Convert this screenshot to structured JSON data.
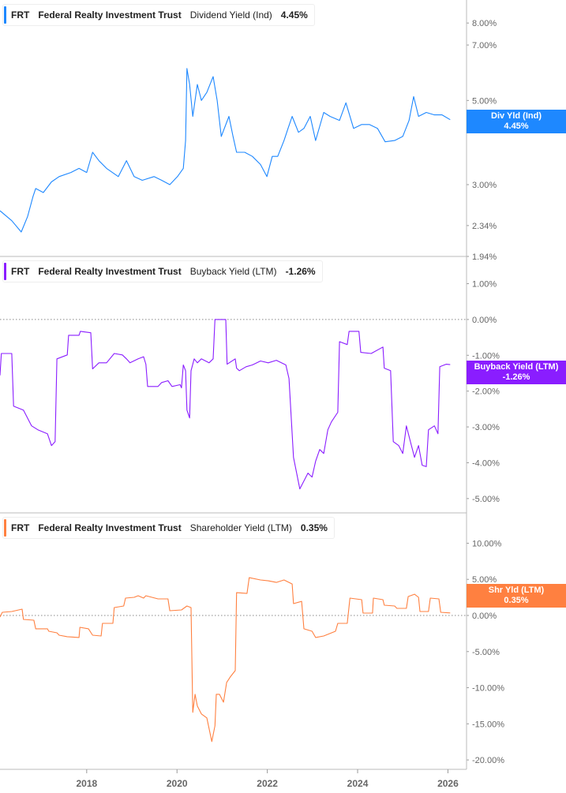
{
  "colors": {
    "dividend": "#1e88ff",
    "buyback": "#8a1dff",
    "shareholder": "#ff8040",
    "axis": "#bbbbbb",
    "tick_text": "#666666"
  },
  "x_axis": {
    "ticks": [
      2018,
      2020,
      2022,
      2024,
      2026
    ],
    "labels": [
      "2018",
      "2020",
      "2022",
      "2024",
      "2026"
    ],
    "range": [
      2016.08,
      2026.4
    ]
  },
  "chart_data": [
    {
      "type": "line",
      "ticker": "FRT",
      "company": "Federal Realty Investment Trust",
      "metric": "Dividend Yield (Ind)",
      "value_label": "4.45%",
      "badge": {
        "line1": "Div Yld (Ind)",
        "line2": "4.45%"
      },
      "last_value": 4.45,
      "y_scale": "log",
      "ylim": [
        1.94,
        9.2
      ],
      "y_ticks": [
        8,
        7,
        5,
        3,
        2.34,
        1.94
      ],
      "y_tick_labels": [
        "8.00%",
        "7.00%",
        "5.00%",
        "3.00%",
        "2.34%",
        "1.94%"
      ],
      "points": [
        [
          2016.08,
          2.56
        ],
        [
          2016.34,
          2.41
        ],
        [
          2016.55,
          2.25
        ],
        [
          2016.69,
          2.47
        ],
        [
          2016.81,
          2.79
        ],
        [
          2016.87,
          2.93
        ],
        [
          2017.04,
          2.86
        ],
        [
          2017.22,
          3.05
        ],
        [
          2017.39,
          3.15
        ],
        [
          2017.65,
          3.23
        ],
        [
          2017.83,
          3.31
        ],
        [
          2018.0,
          3.23
        ],
        [
          2018.13,
          3.65
        ],
        [
          2018.27,
          3.47
        ],
        [
          2018.44,
          3.31
        ],
        [
          2018.7,
          3.15
        ],
        [
          2018.88,
          3.47
        ],
        [
          2019.05,
          3.15
        ],
        [
          2019.23,
          3.08
        ],
        [
          2019.49,
          3.15
        ],
        [
          2019.66,
          3.08
        ],
        [
          2019.84,
          3.0
        ],
        [
          2020.01,
          3.15
        ],
        [
          2020.14,
          3.31
        ],
        [
          2020.19,
          3.92
        ],
        [
          2020.22,
          6.07
        ],
        [
          2020.28,
          5.51
        ],
        [
          2020.35,
          4.54
        ],
        [
          2020.45,
          5.51
        ],
        [
          2020.54,
          5.0
        ],
        [
          2020.66,
          5.25
        ],
        [
          2020.8,
          5.78
        ],
        [
          2020.89,
          5.0
        ],
        [
          2020.98,
          4.02
        ],
        [
          2021.15,
          4.54
        ],
        [
          2021.24,
          4.02
        ],
        [
          2021.32,
          3.65
        ],
        [
          2021.5,
          3.65
        ],
        [
          2021.67,
          3.56
        ],
        [
          2021.85,
          3.39
        ],
        [
          2021.99,
          3.15
        ],
        [
          2022.11,
          3.56
        ],
        [
          2022.23,
          3.56
        ],
        [
          2022.37,
          3.92
        ],
        [
          2022.46,
          4.22
        ],
        [
          2022.55,
          4.54
        ],
        [
          2022.69,
          4.12
        ],
        [
          2022.81,
          4.22
        ],
        [
          2022.95,
          4.54
        ],
        [
          2023.07,
          3.92
        ],
        [
          2023.25,
          4.65
        ],
        [
          2023.39,
          4.54
        ],
        [
          2023.6,
          4.43
        ],
        [
          2023.74,
          4.93
        ],
        [
          2023.91,
          4.22
        ],
        [
          2024.09,
          4.32
        ],
        [
          2024.26,
          4.32
        ],
        [
          2024.44,
          4.22
        ],
        [
          2024.61,
          3.89
        ],
        [
          2024.82,
          3.92
        ],
        [
          2025.0,
          4.02
        ],
        [
          2025.14,
          4.43
        ],
        [
          2025.24,
          5.12
        ],
        [
          2025.35,
          4.54
        ],
        [
          2025.52,
          4.65
        ],
        [
          2025.7,
          4.58
        ],
        [
          2025.87,
          4.58
        ],
        [
          2026.05,
          4.45
        ]
      ]
    },
    {
      "type": "line",
      "ticker": "FRT",
      "company": "Federal Realty Investment Trust",
      "metric": "Buyback Yield (LTM)",
      "value_label": "-1.26%",
      "badge": {
        "line1": "Buyback Yield (LTM)",
        "line2": "-1.26%"
      },
      "last_value": -1.26,
      "y_scale": "linear",
      "ylim": [
        -5.4,
        1.76
      ],
      "zero_line": true,
      "y_ticks": [
        1,
        0,
        -1,
        -2,
        -3,
        -4,
        -5
      ],
      "y_tick_labels": [
        "1.00%",
        "0.00%",
        "-1.00%",
        "-2.00%",
        "-3.00%",
        "-4.00%",
        "-5.00%"
      ],
      "points": [
        [
          2016.08,
          -1.56
        ],
        [
          2016.11,
          -0.95
        ],
        [
          2016.34,
          -0.95
        ],
        [
          2016.38,
          -2.42
        ],
        [
          2016.6,
          -2.53
        ],
        [
          2016.78,
          -2.97
        ],
        [
          2016.92,
          -3.08
        ],
        [
          2017.13,
          -3.19
        ],
        [
          2017.22,
          -3.52
        ],
        [
          2017.3,
          -3.41
        ],
        [
          2017.34,
          -1.1
        ],
        [
          2017.57,
          -0.99
        ],
        [
          2017.6,
          -0.44
        ],
        [
          2017.83,
          -0.44
        ],
        [
          2017.86,
          -0.33
        ],
        [
          2018.09,
          -0.37
        ],
        [
          2018.13,
          -1.38
        ],
        [
          2018.27,
          -1.21
        ],
        [
          2018.44,
          -1.21
        ],
        [
          2018.61,
          -0.95
        ],
        [
          2018.79,
          -0.99
        ],
        [
          2018.88,
          -1.1
        ],
        [
          2018.96,
          -1.21
        ],
        [
          2019.14,
          -1.1
        ],
        [
          2019.26,
          -1.04
        ],
        [
          2019.31,
          -1.25
        ],
        [
          2019.35,
          -1.87
        ],
        [
          2019.58,
          -1.87
        ],
        [
          2019.66,
          -1.76
        ],
        [
          2019.8,
          -1.71
        ],
        [
          2019.89,
          -1.87
        ],
        [
          2020.07,
          -1.82
        ],
        [
          2020.1,
          -1.91
        ],
        [
          2020.14,
          -1.27
        ],
        [
          2020.19,
          -1.43
        ],
        [
          2020.22,
          -2.53
        ],
        [
          2020.28,
          -2.75
        ],
        [
          2020.31,
          -1.43
        ],
        [
          2020.38,
          -1.1
        ],
        [
          2020.45,
          -1.21
        ],
        [
          2020.54,
          -1.1
        ],
        [
          2020.71,
          -1.21
        ],
        [
          2020.8,
          -1.1
        ],
        [
          2020.84,
          0
        ],
        [
          2021.08,
          0
        ],
        [
          2021.11,
          -1.25
        ],
        [
          2021.29,
          -1.1
        ],
        [
          2021.32,
          -1.36
        ],
        [
          2021.38,
          -1.43
        ],
        [
          2021.53,
          -1.32
        ],
        [
          2021.67,
          -1.27
        ],
        [
          2021.85,
          -1.16
        ],
        [
          2022.02,
          -1.21
        ],
        [
          2022.2,
          -1.14
        ],
        [
          2022.41,
          -1.27
        ],
        [
          2022.48,
          -1.65
        ],
        [
          2022.58,
          -3.85
        ],
        [
          2022.72,
          -4.73
        ],
        [
          2022.9,
          -4.29
        ],
        [
          2022.99,
          -4.4
        ],
        [
          2023.07,
          -3.96
        ],
        [
          2023.16,
          -3.63
        ],
        [
          2023.25,
          -3.74
        ],
        [
          2023.34,
          -3.08
        ],
        [
          2023.42,
          -2.86
        ],
        [
          2023.56,
          -2.59
        ],
        [
          2023.6,
          -0.62
        ],
        [
          2023.77,
          -0.7
        ],
        [
          2023.81,
          -0.33
        ],
        [
          2024.03,
          -0.33
        ],
        [
          2024.07,
          -0.92
        ],
        [
          2024.3,
          -0.95
        ],
        [
          2024.56,
          -0.77
        ],
        [
          2024.59,
          -1.36
        ],
        [
          2024.73,
          -1.43
        ],
        [
          2024.79,
          -3.41
        ],
        [
          2024.91,
          -3.52
        ],
        [
          2025.0,
          -3.74
        ],
        [
          2025.08,
          -2.97
        ],
        [
          2025.17,
          -3.41
        ],
        [
          2025.26,
          -3.85
        ],
        [
          2025.35,
          -3.52
        ],
        [
          2025.43,
          -4.07
        ],
        [
          2025.52,
          -4.11
        ],
        [
          2025.57,
          -3.08
        ],
        [
          2025.7,
          -2.97
        ],
        [
          2025.78,
          -3.19
        ],
        [
          2025.82,
          -1.32
        ],
        [
          2025.96,
          -1.25
        ],
        [
          2026.05,
          -1.26
        ]
      ]
    },
    {
      "type": "line",
      "ticker": "FRT",
      "company": "Federal Realty Investment Trust",
      "metric": "Shareholder Yield (LTM)",
      "value_label": "0.35%",
      "badge": {
        "line1": "Shr Yld (LTM)",
        "line2": "0.35%"
      },
      "last_value": 0.35,
      "y_scale": "linear",
      "ylim": [
        -21.3,
        14.2
      ],
      "zero_line": true,
      "y_ticks": [
        10,
        5,
        0,
        -5,
        -10,
        -15,
        -20
      ],
      "y_tick_labels": [
        "10.00%",
        "5.00%",
        "0.00%",
        "-5.00%",
        "-10.00%",
        "-15.00%",
        "-20.00%"
      ],
      "points": [
        [
          2016.08,
          -0.22
        ],
        [
          2016.13,
          0.44
        ],
        [
          2016.34,
          0.55
        ],
        [
          2016.57,
          0.87
        ],
        [
          2016.6,
          -0.55
        ],
        [
          2016.83,
          -0.65
        ],
        [
          2016.87,
          -1.85
        ],
        [
          2017.13,
          -1.85
        ],
        [
          2017.16,
          -2.18
        ],
        [
          2017.34,
          -2.4
        ],
        [
          2017.39,
          -2.73
        ],
        [
          2017.57,
          -2.94
        ],
        [
          2017.83,
          -3.05
        ],
        [
          2017.85,
          -1.64
        ],
        [
          2018.04,
          -1.85
        ],
        [
          2018.13,
          -2.73
        ],
        [
          2018.32,
          -2.84
        ],
        [
          2018.35,
          -1.09
        ],
        [
          2018.58,
          -1.09
        ],
        [
          2018.61,
          1.09
        ],
        [
          2018.82,
          1.31
        ],
        [
          2018.86,
          2.4
        ],
        [
          2019.05,
          2.51
        ],
        [
          2019.14,
          2.73
        ],
        [
          2019.26,
          2.4
        ],
        [
          2019.31,
          2.73
        ],
        [
          2019.58,
          2.29
        ],
        [
          2019.8,
          2.29
        ],
        [
          2019.84,
          0.65
        ],
        [
          2020.1,
          0.76
        ],
        [
          2020.22,
          1.31
        ],
        [
          2020.31,
          1.09
        ],
        [
          2020.35,
          -13.41
        ],
        [
          2020.4,
          -10.91
        ],
        [
          2020.45,
          -12.54
        ],
        [
          2020.54,
          -13.63
        ],
        [
          2020.66,
          -14.18
        ],
        [
          2020.77,
          -17.45
        ],
        [
          2020.84,
          -15.27
        ],
        [
          2020.87,
          -10.91
        ],
        [
          2020.94,
          -10.91
        ],
        [
          2021.03,
          -12.0
        ],
        [
          2021.1,
          -9.27
        ],
        [
          2021.18,
          -8.51
        ],
        [
          2021.29,
          -7.63
        ],
        [
          2021.32,
          3.16
        ],
        [
          2021.55,
          3.05
        ],
        [
          2021.6,
          5.23
        ],
        [
          2021.85,
          4.91
        ],
        [
          2022.02,
          4.8
        ],
        [
          2022.2,
          4.58
        ],
        [
          2022.37,
          4.91
        ],
        [
          2022.55,
          4.36
        ],
        [
          2022.58,
          1.64
        ],
        [
          2022.76,
          1.96
        ],
        [
          2022.81,
          -1.85
        ],
        [
          2022.99,
          -2.18
        ],
        [
          2023.07,
          -3.05
        ],
        [
          2023.25,
          -2.84
        ],
        [
          2023.51,
          -2.18
        ],
        [
          2023.56,
          -1.09
        ],
        [
          2023.77,
          -1.09
        ],
        [
          2023.83,
          2.4
        ],
        [
          2024.09,
          2.18
        ],
        [
          2024.12,
          0.33
        ],
        [
          2024.33,
          0.33
        ],
        [
          2024.35,
          2.4
        ],
        [
          2024.56,
          2.18
        ],
        [
          2024.59,
          1.42
        ],
        [
          2024.82,
          1.31
        ],
        [
          2024.87,
          0.98
        ],
        [
          2025.08,
          0.98
        ],
        [
          2025.12,
          2.62
        ],
        [
          2025.26,
          2.94
        ],
        [
          2025.35,
          2.51
        ],
        [
          2025.38,
          0.55
        ],
        [
          2025.57,
          0.55
        ],
        [
          2025.61,
          2.4
        ],
        [
          2025.8,
          2.29
        ],
        [
          2025.84,
          0.44
        ],
        [
          2026.05,
          0.35
        ]
      ]
    }
  ]
}
